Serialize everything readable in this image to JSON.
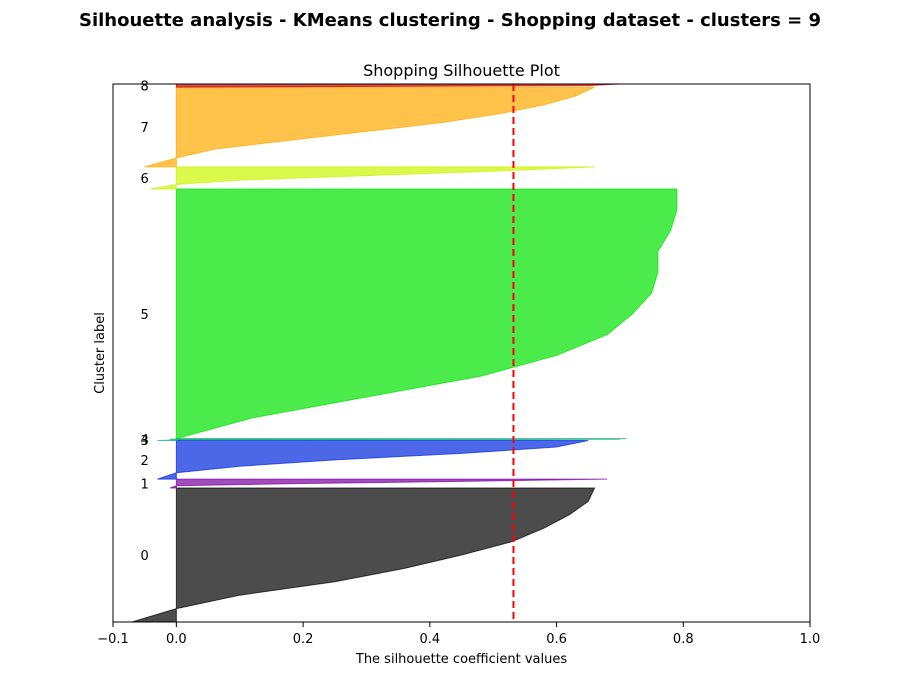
{
  "figure": {
    "suptitle": "Silhouette analysis - KMeans clustering - Shopping dataset - clusters = 9"
  },
  "chart_data": {
    "type": "area",
    "title": "Shopping Silhouette Plot",
    "xlabel": "The silhouette coefficient values",
    "ylabel": "Cluster label",
    "xlim": [
      -0.1,
      1.0
    ],
    "xticks": [
      -0.1,
      0.0,
      0.2,
      0.4,
      0.6,
      0.8,
      1.0
    ],
    "xtick_labels": [
      "−0.1",
      "0.0",
      "0.2",
      "0.4",
      "0.6",
      "0.8",
      "1.0"
    ],
    "average_silhouette": 0.532,
    "average_line_color": "#ff0000",
    "grid": false,
    "clusters": [
      {
        "label": "0",
        "y_start": 0,
        "y_end": 212,
        "color": "#000000",
        "values": [
          0.66,
          0.65,
          0.62,
          0.58,
          0.53,
          0.45,
          0.36,
          0.25,
          0.1,
          0.0,
          -0.07
        ]
      },
      {
        "label": "1",
        "y_start": 212,
        "y_end": 226,
        "color": "#7c00a3",
        "values": [
          0.68,
          0.45,
          0.2,
          0.0,
          -0.01
        ]
      },
      {
        "label": "2",
        "y_start": 226,
        "y_end": 287,
        "color": "#0028dd",
        "values": [
          0.65,
          0.6,
          0.45,
          0.25,
          0.1,
          0.0,
          -0.03
        ]
      },
      {
        "label": "3",
        "y_start": 287,
        "y_end": 289,
        "color": "#00a3bd",
        "values": [
          0.7,
          0.0,
          -0.03
        ]
      },
      {
        "label": "4",
        "y_start": 289,
        "y_end": 290,
        "color": "#00b13b",
        "values": [
          0.71,
          0.0,
          -0.01
        ]
      },
      {
        "label": "5",
        "y_start": 290,
        "y_end": 685,
        "color": "#00e200",
        "values": [
          0.79,
          0.79,
          0.78,
          0.76,
          0.76,
          0.75,
          0.72,
          0.68,
          0.6,
          0.48,
          0.3,
          0.12,
          0.0
        ]
      },
      {
        "label": "6",
        "y_start": 685,
        "y_end": 720,
        "color": "#ccf500",
        "values": [
          0.66,
          0.5,
          0.3,
          0.1,
          0.0,
          -0.04
        ]
      },
      {
        "label": "7",
        "y_start": 720,
        "y_end": 846,
        "color": "#ffaa00",
        "values": [
          0.66,
          0.63,
          0.58,
          0.51,
          0.42,
          0.3,
          0.18,
          0.06,
          0.0,
          -0.05
        ]
      },
      {
        "label": "8",
        "y_start": 846,
        "y_end": 851,
        "color": "#cc0000",
        "values": [
          0.7,
          0.65,
          0.0
        ]
      }
    ]
  }
}
